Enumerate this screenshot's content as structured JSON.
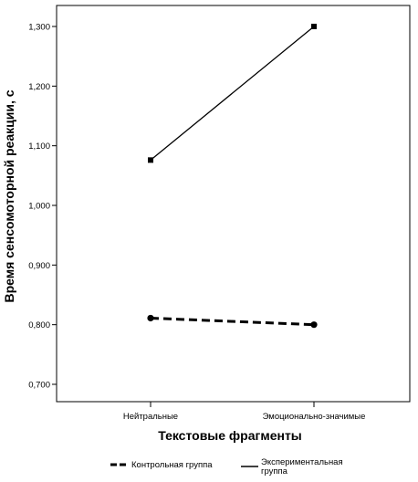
{
  "chart_data": {
    "type": "line",
    "xlabel": "Текстовые фрагменты",
    "ylabel": "Время сенсомоторной реакции, с",
    "categories": [
      "Нейтральные",
      "Эмоционально-значимые"
    ],
    "ylim": [
      0.68,
      1.33
    ],
    "yticks": [
      "0,700",
      "0,800",
      "0,900",
      "1,000",
      "1,100",
      "1,200",
      "1,300"
    ],
    "series": [
      {
        "name": "Контрольная группа",
        "values": [
          0.811,
          0.8
        ],
        "style": "dashed",
        "color": "#000000"
      },
      {
        "name": "Экспериментальная группа",
        "name_lines": [
          "Экспериментальная",
          "группа"
        ],
        "values": [
          1.076,
          1.3
        ],
        "style": "solid",
        "color": "#000000"
      }
    ],
    "grid": false,
    "legend_position": "bottom"
  }
}
